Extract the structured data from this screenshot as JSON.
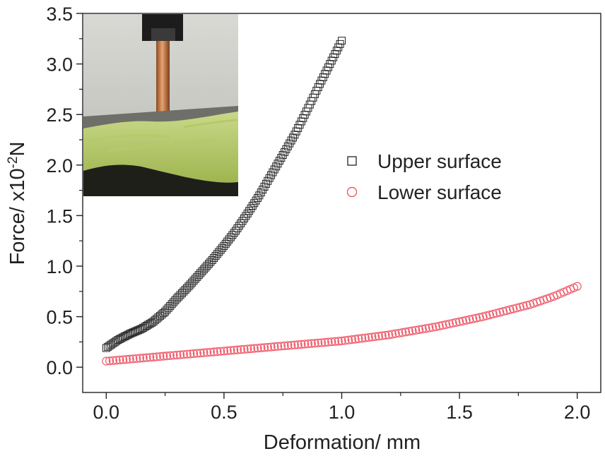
{
  "chart_data": {
    "type": "scatter",
    "title": "",
    "xlabel": "Deformation/ mm",
    "ylabel": "Force/ x10",
    "ylabel_sup": "-2",
    "ylabel_unit": "N",
    "xlim": [
      -0.1,
      2.1
    ],
    "ylim": [
      -0.25,
      3.5
    ],
    "x_ticks": [
      "0.0",
      "0.5",
      "1.0",
      "1.5",
      "2.0"
    ],
    "x_tick_values": [
      0.0,
      0.5,
      1.0,
      1.5,
      2.0
    ],
    "y_ticks": [
      "0.0",
      "0.5",
      "1.0",
      "1.5",
      "2.0",
      "2.5",
      "3.0",
      "3.5"
    ],
    "y_tick_values": [
      0.0,
      0.5,
      1.0,
      1.5,
      2.0,
      2.5,
      3.0,
      3.5
    ],
    "grid": false,
    "legend_position": "right",
    "inset": "photo of a copper probe pressing into a green specimen",
    "series": [
      {
        "name": "Upper surface",
        "marker": "square",
        "color": "#222222",
        "x": [
          0.0,
          0.05,
          0.1,
          0.15,
          0.2,
          0.25,
          0.3,
          0.35,
          0.4,
          0.45,
          0.5,
          0.55,
          0.6,
          0.65,
          0.7,
          0.75,
          0.8,
          0.85,
          0.9,
          0.95,
          1.0
        ],
        "y": [
          0.19,
          0.27,
          0.33,
          0.38,
          0.45,
          0.55,
          0.68,
          0.8,
          0.93,
          1.06,
          1.2,
          1.35,
          1.52,
          1.7,
          1.9,
          2.1,
          2.3,
          2.53,
          2.77,
          3.0,
          3.23
        ]
      },
      {
        "name": "Lower surface",
        "marker": "circle",
        "color": "#ee5a6a",
        "x": [
          0.0,
          0.1,
          0.2,
          0.3,
          0.4,
          0.5,
          0.6,
          0.7,
          0.8,
          0.9,
          1.0,
          1.1,
          1.2,
          1.3,
          1.4,
          1.5,
          1.6,
          1.7,
          1.8,
          1.9,
          2.0
        ],
        "y": [
          0.06,
          0.08,
          0.1,
          0.12,
          0.14,
          0.16,
          0.18,
          0.2,
          0.22,
          0.24,
          0.26,
          0.29,
          0.32,
          0.36,
          0.4,
          0.45,
          0.5,
          0.56,
          0.62,
          0.7,
          0.8
        ]
      }
    ]
  }
}
